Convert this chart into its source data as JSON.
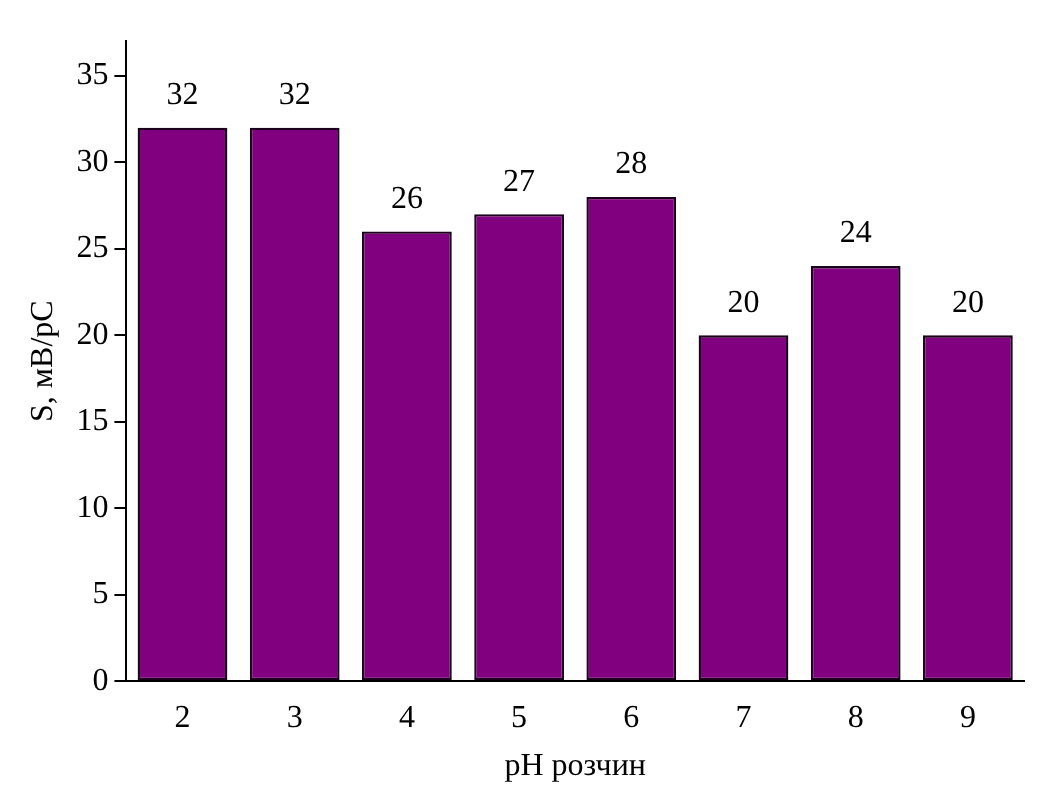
{
  "chart_data": {
    "type": "bar",
    "xlabel": "pH розчин",
    "ylabel": "S, мВ/pC",
    "categories": [
      "2",
      "3",
      "4",
      "5",
      "6",
      "7",
      "8",
      "9"
    ],
    "values": [
      32,
      32,
      26,
      27,
      28,
      20,
      24,
      20
    ],
    "color": "#800080",
    "ylim": [
      0,
      37
    ],
    "yticks": [
      0,
      5,
      10,
      15,
      20,
      25,
      30,
      35
    ],
    "grid": false,
    "legend": false,
    "data_labels": true
  }
}
